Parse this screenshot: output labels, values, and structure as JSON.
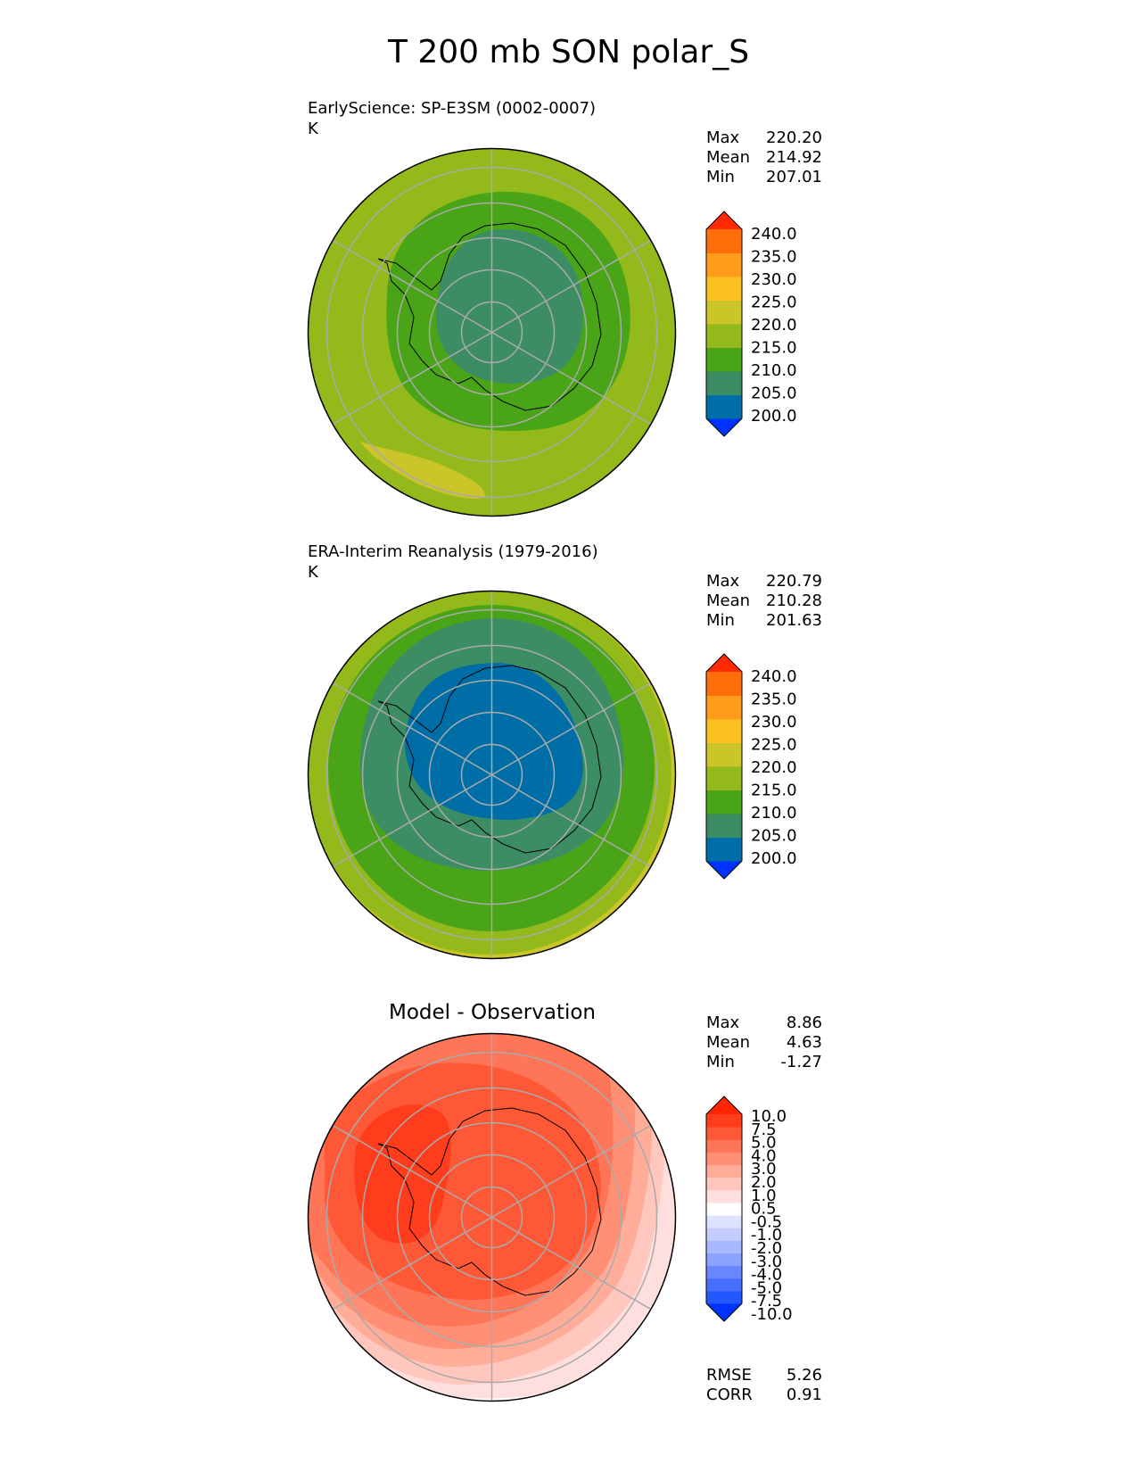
{
  "title": "T 200 mb SON polar_S",
  "colors": {
    "levels_cmap": [
      "#0033ff",
      "#006ea6",
      "#3c8c64",
      "#4aa418",
      "#93b91a",
      "#ccc52a",
      "#fcc221",
      "#ff9c1a",
      "#ff6e0b",
      "#ff2a04"
    ],
    "diff_cmap": [
      "#0033ff",
      "#2357ff",
      "#466fff",
      "#6988ff",
      "#8ca2ff",
      "#a8b8ff",
      "#c3cdff",
      "#dde3ff",
      "#ffffff",
      "#ffdede",
      "#ffc7bd",
      "#ffac98",
      "#ff9076",
      "#ff7557",
      "#ff5837",
      "#ff3c1c",
      "#ff2500"
    ],
    "outline": "#000000",
    "grid": "#aaaaaa"
  },
  "panels": [
    {
      "title_line1": "EarlyScience: SP-E3SM (0002-0007)",
      "title_line2": "K",
      "stats": [
        {
          "label": "Max",
          "value": "220.20"
        },
        {
          "label": "Mean",
          "value": "214.92"
        },
        {
          "label": "Min",
          "value": "207.01"
        }
      ],
      "colorbar_ticks": [
        "240.0",
        "235.0",
        "230.0",
        "225.0",
        "220.0",
        "215.0",
        "210.0",
        "205.0",
        "200.0"
      ]
    },
    {
      "title_line1": "ERA-Interim Reanalysis (1979-2016)",
      "title_line2": "K",
      "stats": [
        {
          "label": "Max",
          "value": "220.79"
        },
        {
          "label": "Mean",
          "value": "210.28"
        },
        {
          "label": "Min",
          "value": "201.63"
        }
      ],
      "colorbar_ticks": [
        "240.0",
        "235.0",
        "230.0",
        "225.0",
        "220.0",
        "215.0",
        "210.0",
        "205.0",
        "200.0"
      ]
    },
    {
      "title_line1": "Model - Observation",
      "stats": [
        {
          "label": "Max",
          "value": "8.86"
        },
        {
          "label": "Mean",
          "value": "4.63"
        },
        {
          "label": "Min",
          "value": "-1.27"
        }
      ],
      "colorbar_ticks": [
        "10.0",
        "7.5",
        "5.0",
        "4.0",
        "3.0",
        "2.0",
        "1.0",
        "0.5",
        "-0.5",
        "-1.0",
        "-2.0",
        "-3.0",
        "-4.0",
        "-5.0",
        "-7.5",
        "-10.0"
      ],
      "metrics": [
        {
          "label": "RMSE",
          "value": "5.26"
        },
        {
          "label": "CORR",
          "value": "0.91"
        }
      ]
    }
  ],
  "chart_data": [
    {
      "type": "heatmap",
      "projection": "south polar stereographic",
      "variable": "T",
      "level": "200 mb",
      "season": "SON",
      "units": "K",
      "title": "EarlyScience: SP-E3SM (0002-0007)",
      "contour_levels": [
        200,
        205,
        210,
        215,
        220,
        225,
        230,
        235,
        240
      ],
      "max": 220.2,
      "mean": 214.92,
      "min": 207.01
    },
    {
      "type": "heatmap",
      "projection": "south polar stereographic",
      "variable": "T",
      "level": "200 mb",
      "season": "SON",
      "units": "K",
      "title": "ERA-Interim Reanalysis (1979-2016)",
      "contour_levels": [
        200,
        205,
        210,
        215,
        220,
        225,
        230,
        235,
        240
      ],
      "max": 220.79,
      "mean": 210.28,
      "min": 201.63
    },
    {
      "type": "heatmap",
      "projection": "south polar stereographic",
      "title": "Model - Observation",
      "contour_levels": [
        -10,
        -7.5,
        -5,
        -4,
        -3,
        -2,
        -1,
        -0.5,
        0.5,
        1,
        2,
        3,
        4,
        5,
        7.5,
        10
      ],
      "max": 8.86,
      "mean": 4.63,
      "min": -1.27,
      "rmse": 5.26,
      "corr": 0.91
    }
  ]
}
